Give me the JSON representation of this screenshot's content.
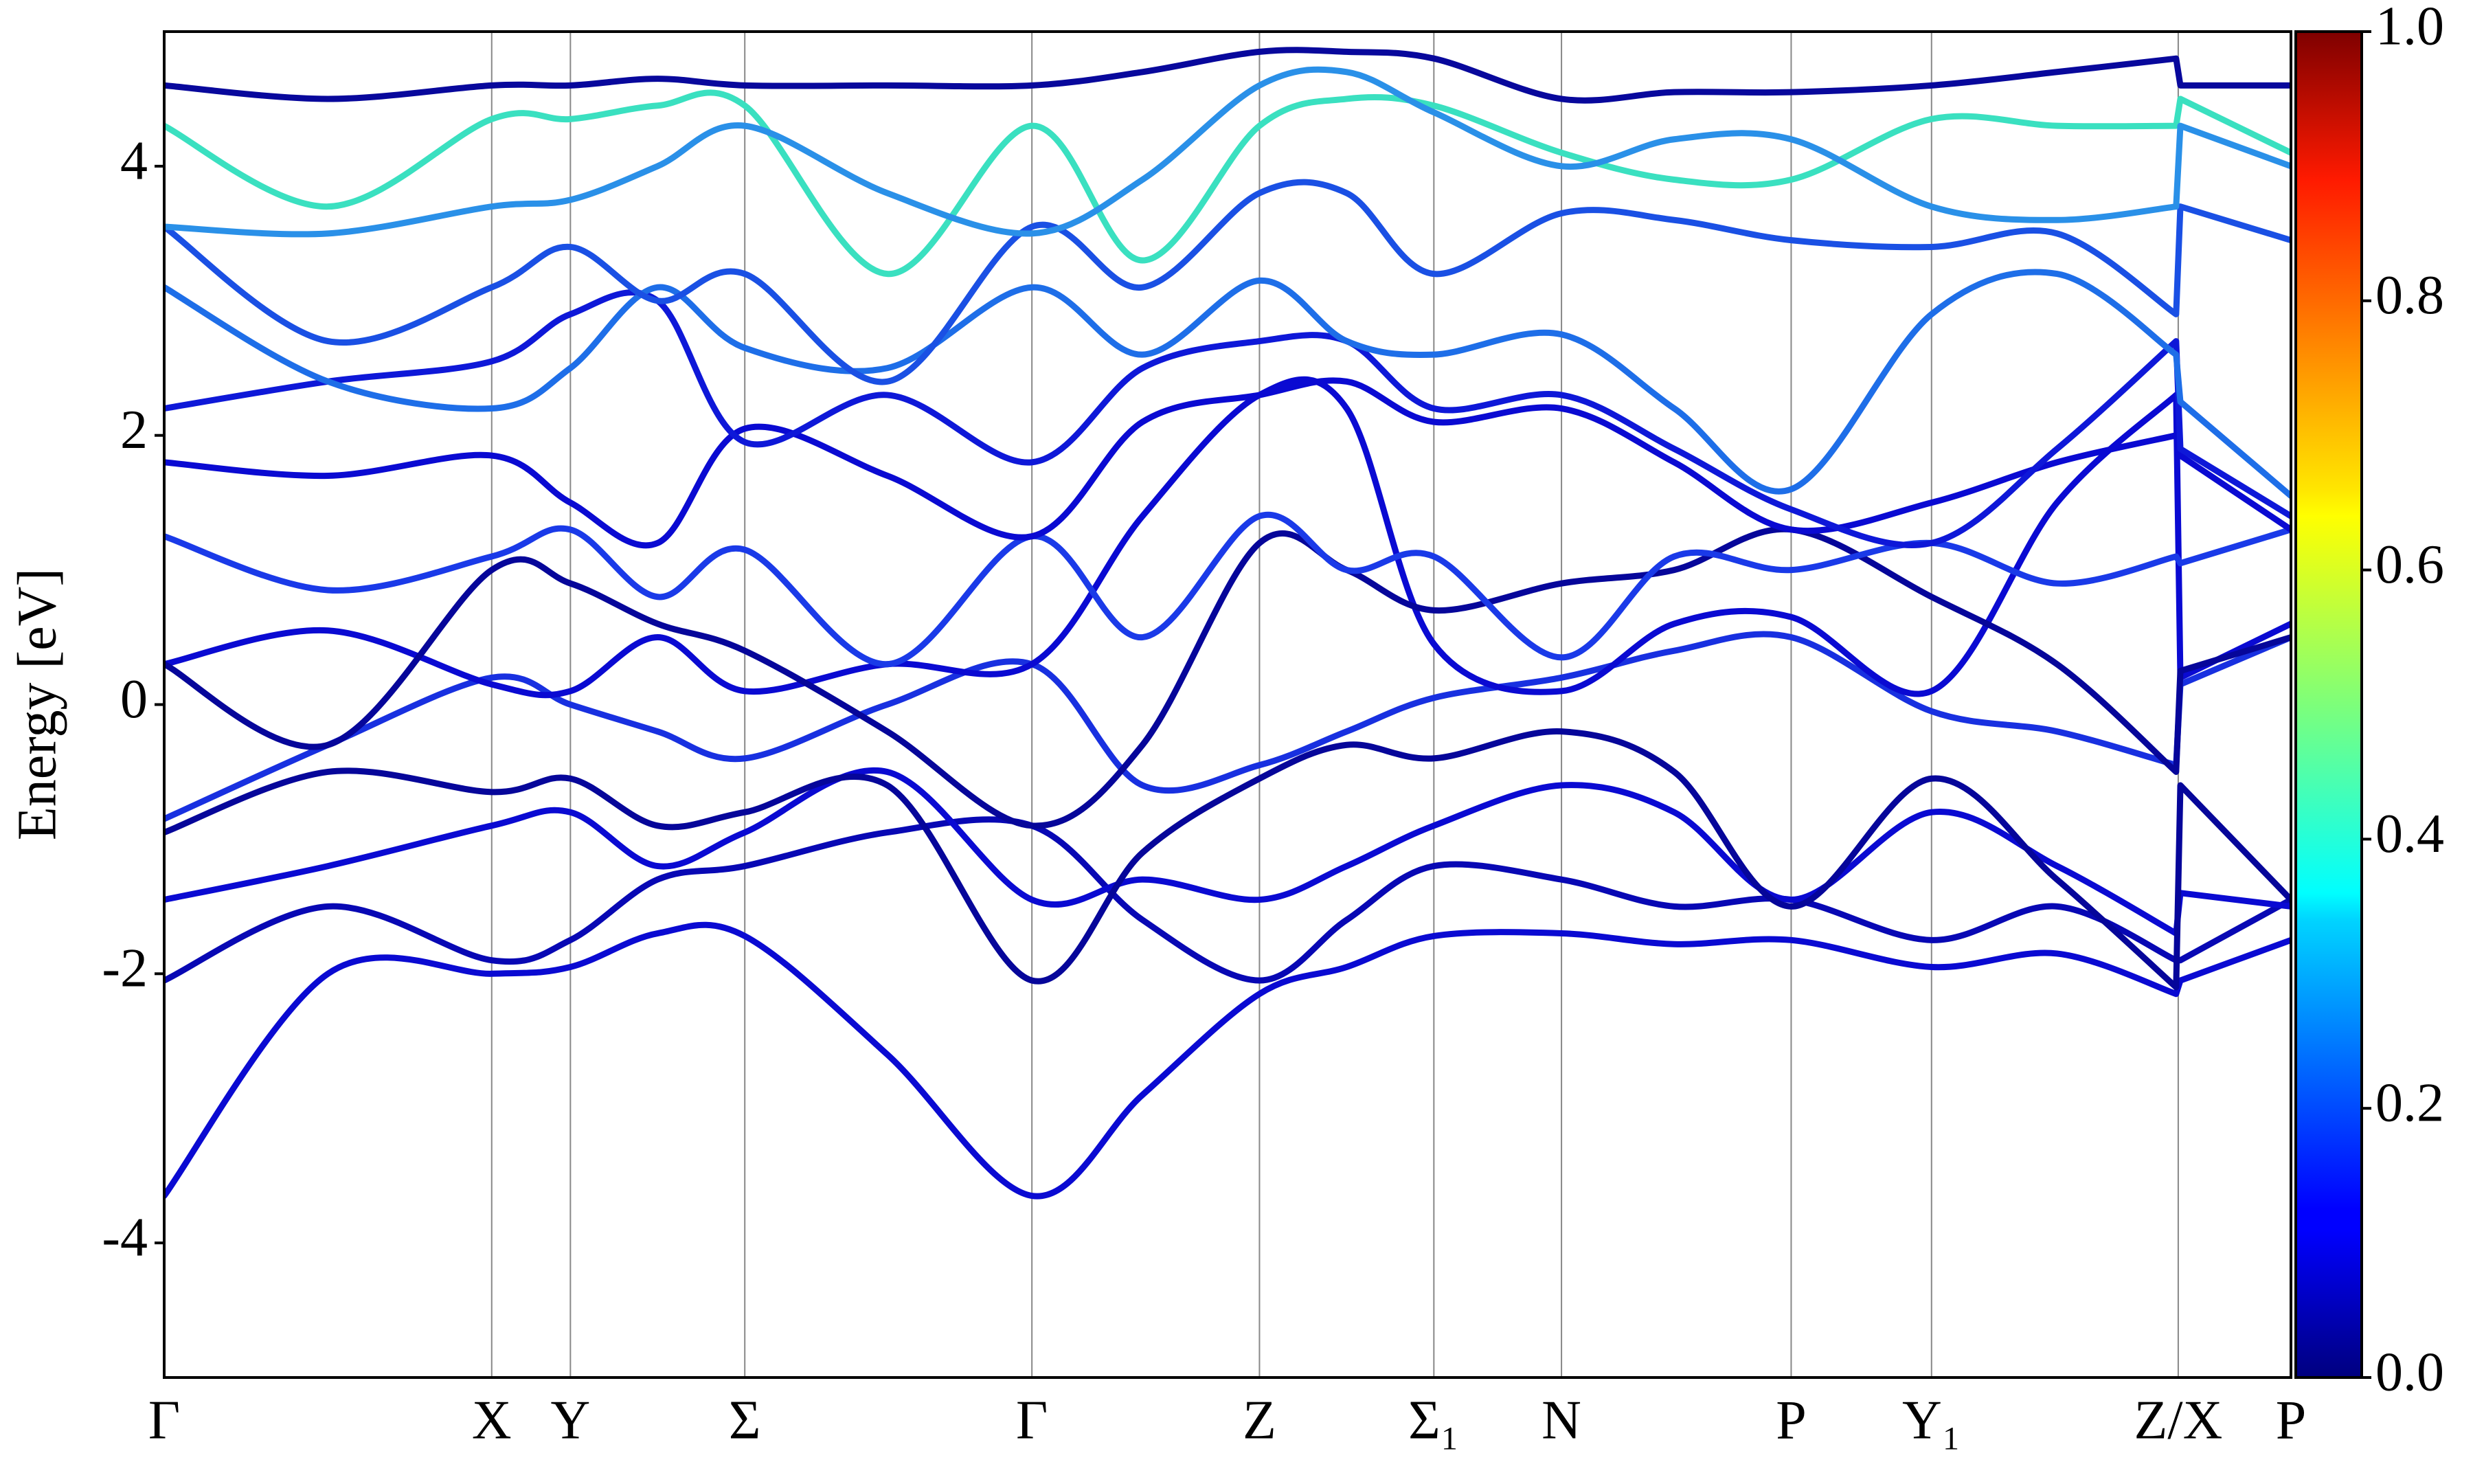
{
  "chart_data": {
    "type": "line",
    "ylabel": "Energy [eV]",
    "x": [
      0,
      0.077,
      0.154,
      0.191,
      0.232,
      0.273,
      0.34,
      0.408,
      0.46,
      0.515,
      0.556,
      0.597,
      0.657,
      0.71,
      0.765,
      0.831,
      0.89,
      0.946,
      0.948,
      1.0
    ],
    "xlim": [
      0,
      1
    ],
    "xticks": [
      {
        "value": 0,
        "label": "Γ"
      },
      {
        "value": 0.154,
        "label": "X"
      },
      {
        "value": 0.191,
        "label": "Y"
      },
      {
        "value": 0.273,
        "label": "Σ"
      },
      {
        "value": 0.408,
        "label": "Γ"
      },
      {
        "value": 0.515,
        "label": "Z"
      },
      {
        "value": 0.597,
        "label": "Σ₁"
      },
      {
        "value": 0.657,
        "label": "N"
      },
      {
        "value": 0.765,
        "label": "P"
      },
      {
        "value": 0.831,
        "label": "Y₁"
      },
      {
        "value": 0.947,
        "label": "Z/X"
      },
      {
        "value": 1.0,
        "label": "P"
      }
    ],
    "ylim": [
      -5,
      5
    ],
    "yticks": [
      -4,
      -2,
      0,
      2,
      4
    ],
    "grid": "x",
    "colormap": "jet",
    "colorbar": {
      "lim": [
        0,
        1
      ],
      "ticks": [
        {
          "value": 0,
          "label": "0.0"
        },
        {
          "value": 0.2,
          "label": "0.2"
        },
        {
          "value": 0.4,
          "label": "0.4"
        },
        {
          "value": 0.6,
          "label": "0.6"
        },
        {
          "value": 0.8,
          "label": "0.8"
        },
        {
          "value": 1,
          "label": "1.0"
        }
      ]
    },
    "series": [
      {
        "color": "#0a0ad2",
        "values": [
          -3.65,
          -2.0,
          -2.0,
          -1.95,
          -1.7,
          -1.72,
          -2.6,
          -3.65,
          -2.9,
          -2.15,
          -1.95,
          -1.72,
          -1.7,
          -1.78,
          -1.75,
          -1.95,
          -1.85,
          -2.15,
          -2.05,
          -1.75
        ]
      },
      {
        "color": "#0808b4",
        "values": [
          -2.05,
          -1.5,
          -1.9,
          -1.75,
          -1.3,
          -1.2,
          -0.95,
          -0.9,
          -1.6,
          -2.05,
          -1.6,
          -1.2,
          -1.3,
          -1.5,
          -1.45,
          -1.75,
          -1.5,
          -1.9,
          -1.9,
          -1.45
        ]
      },
      {
        "color": "#0a0ad2",
        "values": [
          -1.45,
          -1.2,
          -0.9,
          -0.8,
          -1.2,
          -0.95,
          -0.5,
          -1.45,
          -1.3,
          -1.45,
          -1.2,
          -0.9,
          -0.6,
          -0.8,
          -1.45,
          -0.8,
          -1.2,
          -1.7,
          -1.4,
          -1.5
        ]
      },
      {
        "color": "#06069a",
        "values": [
          -0.95,
          -0.5,
          -0.65,
          -0.55,
          -0.9,
          -0.8,
          -0.6,
          -2.05,
          -1.1,
          -0.55,
          -0.3,
          -0.4,
          -0.2,
          -0.5,
          -1.5,
          -0.55,
          -1.3,
          -2.1,
          -0.6,
          -1.45
        ]
      },
      {
        "color": "#1830e0",
        "values": [
          -0.85,
          -0.3,
          0.2,
          0.0,
          -0.2,
          -0.4,
          0.0,
          0.3,
          -0.6,
          -0.45,
          -0.2,
          0.05,
          0.2,
          0.4,
          0.5,
          -0.05,
          -0.2,
          -0.45,
          0.15,
          0.5
        ]
      },
      {
        "color": "#0a0ad2",
        "values": [
          0.3,
          0.55,
          0.15,
          0.1,
          0.5,
          0.1,
          0.3,
          0.3,
          1.4,
          2.3,
          2.2,
          0.45,
          0.1,
          0.6,
          0.65,
          0.1,
          1.5,
          2.3,
          0.2,
          0.6
        ]
      },
      {
        "color": "#06069a",
        "values": [
          0.3,
          -0.3,
          1.0,
          0.9,
          0.6,
          0.4,
          -0.2,
          -0.9,
          -0.3,
          1.2,
          1.0,
          0.7,
          0.9,
          1.0,
          1.3,
          0.8,
          0.3,
          -0.5,
          0.25,
          0.5
        ]
      },
      {
        "color": "#1a3ae8",
        "values": [
          1.25,
          0.85,
          1.1,
          1.3,
          0.8,
          1.15,
          0.3,
          1.25,
          0.5,
          1.4,
          1.0,
          1.1,
          0.35,
          1.1,
          1.0,
          1.2,
          0.9,
          1.1,
          1.05,
          1.3
        ]
      },
      {
        "color": "#0a0ad2",
        "values": [
          1.8,
          1.7,
          1.85,
          1.5,
          1.2,
          2.05,
          1.7,
          1.25,
          2.1,
          2.3,
          2.4,
          2.1,
          2.2,
          1.8,
          1.3,
          1.5,
          1.8,
          2.0,
          1.85,
          1.3
        ]
      },
      {
        "color": "#0e18d8",
        "values": [
          2.2,
          2.4,
          2.55,
          2.9,
          3.0,
          1.95,
          2.3,
          1.8,
          2.5,
          2.7,
          2.7,
          2.2,
          2.3,
          1.9,
          1.45,
          1.2,
          1.9,
          2.7,
          1.9,
          1.4
        ]
      },
      {
        "color": "#1e6ee8",
        "values": [
          3.1,
          2.4,
          2.2,
          2.5,
          3.1,
          2.65,
          2.5,
          3.1,
          2.6,
          3.15,
          2.7,
          2.6,
          2.75,
          2.2,
          1.6,
          2.9,
          3.2,
          2.6,
          2.25,
          1.55
        ]
      },
      {
        "color": "#1a50e4",
        "values": [
          3.55,
          2.7,
          3.1,
          3.4,
          3.0,
          3.2,
          2.4,
          3.55,
          3.1,
          3.8,
          3.8,
          3.2,
          3.65,
          3.6,
          3.45,
          3.4,
          3.5,
          2.9,
          3.7,
          3.45
        ]
      },
      {
        "color": "#3ae0c0",
        "values": [
          4.3,
          3.7,
          4.35,
          4.35,
          4.45,
          4.45,
          3.2,
          4.3,
          3.3,
          4.3,
          4.5,
          4.45,
          4.1,
          3.9,
          3.9,
          4.35,
          4.3,
          4.3,
          4.5,
          4.1
        ]
      },
      {
        "color": "#2a90e8",
        "values": [
          3.55,
          3.5,
          3.7,
          3.75,
          4.0,
          4.3,
          3.8,
          3.5,
          3.9,
          4.6,
          4.7,
          4.4,
          4.0,
          4.2,
          4.2,
          3.7,
          3.6,
          3.7,
          4.3,
          4.0
        ]
      },
      {
        "color": "#08089c",
        "values": [
          4.6,
          4.5,
          4.6,
          4.6,
          4.65,
          4.6,
          4.6,
          4.6,
          4.7,
          4.85,
          4.85,
          4.8,
          4.5,
          4.55,
          4.55,
          4.6,
          4.7,
          4.8,
          4.6,
          4.6
        ]
      }
    ]
  }
}
